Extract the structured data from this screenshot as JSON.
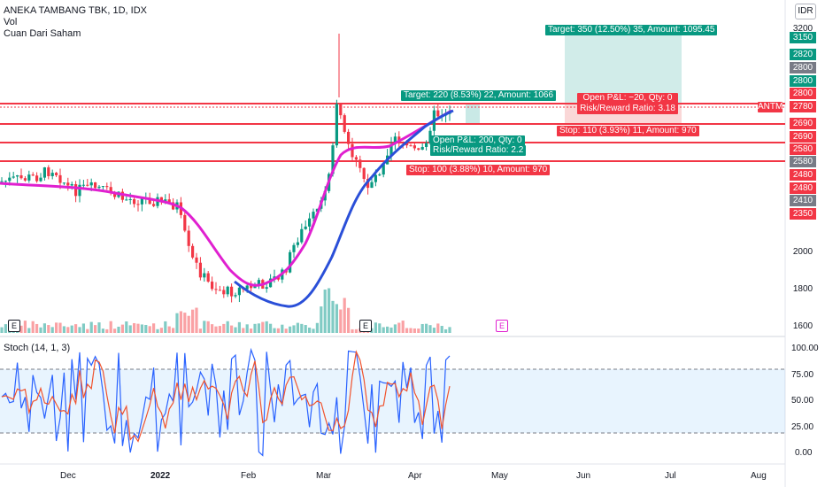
{
  "header": {
    "symbol_line": "ANEKA TAMBANG TBK, 1D, IDX",
    "indicator_vol": "Vol",
    "indicator_custom": "Cuan Dari Saham"
  },
  "currency_button": "IDR",
  "price_scale": {
    "ticks": [
      "3200",
      "2000",
      "1800",
      "1600"
    ],
    "labels": [
      {
        "text": "3150",
        "color": "#089981"
      },
      {
        "text": "2820",
        "color": "#089981"
      },
      {
        "text": "2800",
        "color": "#787b86"
      },
      {
        "text": "2800",
        "color": "#089981"
      },
      {
        "text": "2800",
        "color": "#f23645"
      },
      {
        "text": "2780",
        "color": "#f23645"
      },
      {
        "text": "2690",
        "color": "#f23645"
      },
      {
        "text": "2690",
        "color": "#f23645"
      },
      {
        "text": "2580",
        "color": "#f23645"
      },
      {
        "text": "2580",
        "color": "#787b86"
      },
      {
        "text": "2480",
        "color": "#f23645"
      },
      {
        "text": "2480",
        "color": "#f23645"
      },
      {
        "text": "2410",
        "color": "#787b86"
      },
      {
        "text": "2350",
        "color": "#f23645"
      }
    ],
    "symbol_tag": "ANTM"
  },
  "positions": {
    "target_long_big": "Target: 350 (12.50%) 35, Amount: 1095.45",
    "target_long_small": "Target: 220 (8.53%) 22, Amount: 1066",
    "open_pl_1": "Open P&L: −20, Qty: 0",
    "rr_1": "Risk/Reward Ratio: 3.18",
    "stop_1": "Stop: 110 (3.93%) 11, Amount: 970",
    "open_pl_2": "Open P&L: 200, Qty: 0",
    "rr_2": "Risk/Reward Ratio: 2.2",
    "stop_2": "Stop: 100 (3.88%) 10, Amount: 970"
  },
  "earnings_markers": [
    "E",
    "E",
    "E"
  ],
  "stoch": {
    "title": "Stoch (14, 1, 3)",
    "scale": [
      "100.00",
      "75.00",
      "50.00",
      "25.00",
      "0.00"
    ]
  },
  "x_axis": [
    "Dec",
    "2022",
    "Feb",
    "Mar",
    "Apr",
    "May",
    "Jun",
    "Jul",
    "Aug"
  ],
  "colors": {
    "up": "#089981",
    "down": "#f23645",
    "ma_pink": "#e020d0",
    "ma_blue": "#2a4fd8",
    "stoch_k": "#2962ff",
    "stoch_d": "#f0532e"
  }
}
